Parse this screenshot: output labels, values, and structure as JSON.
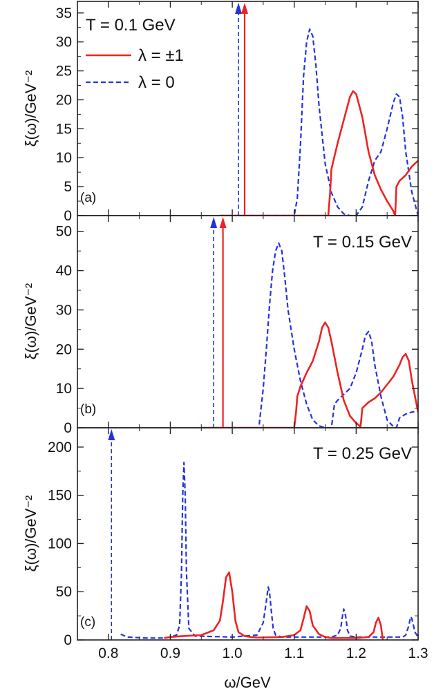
{
  "chart_data": {
    "type": "line",
    "xlabel": "ω/GeV",
    "ylabel": "ξ(ω)/GeV⁻²",
    "xlim": [
      0.75,
      1.3
    ],
    "x_ticks": [
      0.8,
      0.9,
      1.0,
      1.1,
      1.2,
      1.3
    ],
    "x_tick_labels": [
      "0.8",
      "0.9",
      "1.0",
      "1.1",
      "1.2",
      "1.3"
    ],
    "legend": {
      "placement": "top-left",
      "entries": [
        {
          "label": "λ = ±1",
          "series": "lambda_pm1",
          "color": "#ee2222",
          "style": "solid"
        },
        {
          "label": "λ = 0",
          "series": "lambda_0",
          "color": "#2233dd",
          "style": "dashed"
        }
      ]
    },
    "panels": [
      {
        "id": "a",
        "label": "(a)",
        "title": "T = 0.1 GeV",
        "ylim": [
          0,
          37
        ],
        "y_ticks": [
          0,
          5,
          10,
          15,
          20,
          25,
          30,
          35
        ],
        "y_tick_labels": [
          "0",
          "5",
          "10",
          "15",
          "20",
          "25",
          "30",
          "35"
        ],
        "delta_peaks": [
          {
            "series": "lambda_0",
            "x": 1.01
          },
          {
            "series": "lambda_pm1",
            "x": 1.02
          }
        ],
        "series": [
          {
            "name": "lambda_0",
            "x": [
              0.98,
              1.1,
              1.105,
              1.11,
              1.115,
              1.12,
              1.125,
              1.13,
              1.135,
              1.14,
              1.15,
              1.16,
              1.17,
              1.18,
              1.19,
              1.2,
              1.21,
              1.22,
              1.23,
              1.24,
              1.25,
              1.26,
              1.265,
              1.27,
              1.275,
              1.28,
              1.29,
              1.3
            ],
            "y": [
              0,
              0,
              3,
              12,
              24,
              30,
              32.2,
              31,
              26,
              19,
              9,
              4,
              1.5,
              0.3,
              0,
              0,
              1.5,
              6,
              9.5,
              11,
              15,
              19.5,
              21,
              20.5,
              17,
              11,
              4,
              0
            ]
          },
          {
            "name": "lambda_pm1",
            "x": [
              0.98,
              1.155,
              1.158,
              1.16,
              1.17,
              1.18,
              1.19,
              1.195,
              1.2,
              1.21,
              1.22,
              1.23,
              1.24,
              1.25,
              1.26,
              1.263,
              1.265,
              1.27,
              1.28,
              1.29,
              1.3
            ],
            "y": [
              0,
              0,
              4,
              8,
              12.5,
              16.5,
              20.5,
              21.5,
              21,
              17,
              11,
              7,
              4.5,
              2.5,
              0.8,
              0,
              5,
              6,
              7,
              8.5,
              9.5
            ]
          }
        ]
      },
      {
        "id": "b",
        "label": "(b)",
        "title": "T = 0.15 GeV",
        "ylim": [
          0,
          54
        ],
        "y_ticks": [
          0,
          10,
          20,
          30,
          40,
          50
        ],
        "y_tick_labels": [
          "0",
          "10",
          "20",
          "30",
          "40",
          "50"
        ],
        "delta_peaks": [
          {
            "series": "lambda_0",
            "x": 0.97
          },
          {
            "series": "lambda_pm1",
            "x": 0.985
          }
        ],
        "series": [
          {
            "name": "lambda_0",
            "x": [
              0.95,
              1.043,
              1.05,
              1.055,
              1.06,
              1.065,
              1.07,
              1.075,
              1.08,
              1.085,
              1.09,
              1.1,
              1.11,
              1.12,
              1.13,
              1.14,
              1.15,
              1.16,
              1.165,
              1.17,
              1.18,
              1.19,
              1.2,
              1.21,
              1.215,
              1.22,
              1.225,
              1.23,
              1.24,
              1.25,
              1.26,
              1.265,
              1.27,
              1.28,
              1.29,
              1.3
            ],
            "y": [
              0,
              0,
              10,
              20,
              31,
              40,
              45,
              47,
              45,
              38,
              30,
              20,
              12,
              6,
              2,
              0.5,
              0,
              0,
              6,
              7,
              8.5,
              10,
              14,
              20,
              23.5,
              24.5,
              22,
              16,
              8,
              2,
              0.3,
              0,
              2.5,
              3.5,
              4,
              4.2
            ]
          },
          {
            "name": "lambda_pm1",
            "x": [
              0.95,
              1.1,
              1.103,
              1.105,
              1.11,
              1.12,
              1.13,
              1.14,
              1.145,
              1.15,
              1.155,
              1.16,
              1.17,
              1.18,
              1.19,
              1.2,
              1.205,
              1.207,
              1.21,
              1.22,
              1.23,
              1.24,
              1.25,
              1.26,
              1.27,
              1.275,
              1.28,
              1.285,
              1.29,
              1.3
            ],
            "y": [
              0,
              0,
              4,
              8,
              10.5,
              14,
              17,
              22,
              25.5,
              26.8,
              25.5,
              22,
              14,
              7,
              3,
              1.2,
              0.6,
              0,
              5,
              6.5,
              7.5,
              9,
              11,
              13,
              16,
              18,
              18.8,
              17,
              12,
              4
            ]
          }
        ]
      },
      {
        "id": "c",
        "label": "(c)",
        "title": "T = 0.25 GeV",
        "ylim": [
          0,
          220
        ],
        "y_ticks": [
          0,
          50,
          100,
          150,
          200
        ],
        "y_tick_labels": [
          "0",
          "50",
          "100",
          "150",
          "200"
        ],
        "delta_peaks": [
          {
            "series": "lambda_0",
            "x": 0.805
          }
        ],
        "series": [
          {
            "name": "lambda_0",
            "x": [
              0.82,
              0.83,
              0.86,
              0.89,
              0.9,
              0.91,
              0.915,
              0.918,
              0.92,
              0.922,
              0.924,
              0.926,
              0.93,
              0.94,
              1.0,
              1.04,
              1.05,
              1.055,
              1.058,
              1.06,
              1.063,
              1.066,
              1.07,
              1.08,
              1.16,
              1.17,
              1.175,
              1.178,
              1.18,
              1.183,
              1.186,
              1.19,
              1.2,
              1.275,
              1.28,
              1.285,
              1.288,
              1.29,
              1.295,
              1.3
            ],
            "y": [
              6,
              3,
              2,
              2,
              3,
              5,
              15,
              70,
              150,
              184,
              150,
              70,
              12,
              4,
              3,
              5,
              18,
              40,
              55,
              50,
              30,
              12,
              5,
              3,
              3,
              5,
              12,
              25,
              32,
              25,
              10,
              4,
              3,
              3,
              5,
              15,
              24,
              22,
              8,
              3
            ]
          },
          {
            "name": "lambda_pm1",
            "x": [
              0.89,
              0.9,
              0.92,
              0.95,
              0.97,
              0.98,
              0.985,
              0.99,
              0.995,
              1.0,
              1.005,
              1.01,
              1.02,
              1.03,
              1.04,
              1.08,
              1.1,
              1.11,
              1.115,
              1.12,
              1.125,
              1.13,
              1.14,
              1.15,
              1.16,
              1.18,
              1.2,
              1.22,
              1.228,
              1.232,
              1.236,
              1.24,
              1.243
            ],
            "y": [
              2,
              3,
              4,
              5,
              10,
              20,
              40,
              65,
              70,
              50,
              20,
              8,
              4,
              3,
              2.5,
              3,
              5,
              10,
              22,
              35,
              30,
              15,
              6,
              3,
              2,
              2,
              2,
              3,
              8,
              18,
              23,
              15,
              0
            ]
          }
        ]
      }
    ]
  }
}
